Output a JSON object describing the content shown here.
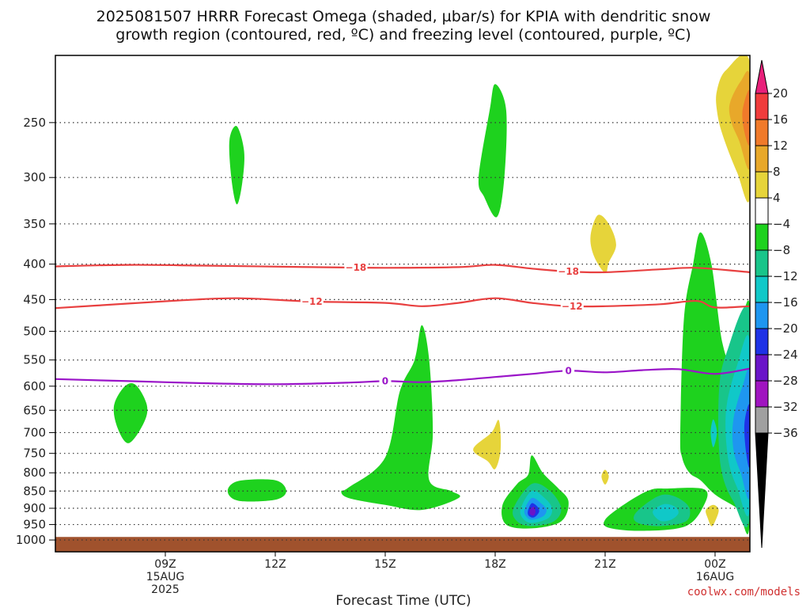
{
  "title_line1": "2025081507 HRRR Forecast Omega (shaded, µbar/s) for KPIA with dendritic snow",
  "title_line2": "growth region (contoured, red, ºC) and freezing level (contoured, purple, ºC)",
  "credit": "coolwx.com/models",
  "chart_data": {
    "type": "heatmap",
    "xlabel": "Forecast Time (UTC)",
    "x_range_hours": [
      6.0,
      24.95
    ],
    "y_axis": {
      "scale": "log",
      "reversed": true,
      "range_hPa": [
        1040,
        200
      ]
    },
    "y_ticks": [
      250,
      300,
      350,
      400,
      450,
      500,
      550,
      600,
      650,
      700,
      750,
      800,
      850,
      900,
      950,
      1000
    ],
    "x_ticks": [
      {
        "hour": 9,
        "lines": [
          "09Z",
          "15AUG",
          "2025"
        ]
      },
      {
        "hour": 12,
        "lines": [
          "12Z"
        ]
      },
      {
        "hour": 15,
        "lines": [
          "15Z"
        ]
      },
      {
        "hour": 18,
        "lines": [
          "18Z"
        ]
      },
      {
        "hour": 21,
        "lines": [
          "21Z"
        ]
      },
      {
        "hour": 24,
        "lines": [
          "00Z",
          "16AUG"
        ]
      }
    ],
    "grid": "dotted horizontal at each pressure tick",
    "colorbar": {
      "levels": [
        "20",
        "16",
        "12",
        "8",
        "4",
        "−4",
        "−8",
        "−12",
        "−16",
        "−20",
        "−24",
        "−28",
        "−32",
        "−36"
      ],
      "colors": [
        "#e8207a",
        "#f03c3c",
        "#f07a2a",
        "#e8a82a",
        "#e6d43a",
        "#ffffff",
        "#1ed21e",
        "#18c58a",
        "#10c8c8",
        "#1e96f0",
        "#1e32e6",
        "#6a14c8",
        "#a014c0",
        "#a0a0a0",
        "#000000"
      ]
    },
    "contours": [
      {
        "label": "−18",
        "color": "#e84040",
        "points": [
          [
            6.0,
            403
          ],
          [
            8.0,
            401
          ],
          [
            10.0,
            402
          ],
          [
            13.0,
            404
          ],
          [
            15.0,
            405
          ],
          [
            17.0,
            404
          ],
          [
            18.0,
            401
          ],
          [
            19.0,
            406
          ],
          [
            20.0,
            410
          ],
          [
            21.0,
            411
          ],
          [
            22.5,
            407
          ],
          [
            23.5,
            405
          ],
          [
            24.95,
            411
          ]
        ],
        "label_hours": [
          14.2,
          20.0
        ]
      },
      {
        "label": "−12",
        "color": "#e84040",
        "points": [
          [
            6.0,
            463
          ],
          [
            8.0,
            456
          ],
          [
            9.5,
            451
          ],
          [
            11.0,
            448
          ],
          [
            13.0,
            453
          ],
          [
            15.0,
            455
          ],
          [
            16.0,
            460
          ],
          [
            17.0,
            455
          ],
          [
            18.0,
            448
          ],
          [
            19.0,
            455
          ],
          [
            20.0,
            460
          ],
          [
            21.0,
            460
          ],
          [
            22.5,
            457
          ],
          [
            23.5,
            452
          ],
          [
            24.0,
            462
          ],
          [
            24.95,
            460
          ]
        ],
        "label_hours": [
          13.0,
          20.1
        ]
      },
      {
        "label": "0",
        "color": "#9a14c8",
        "points": [
          [
            6.0,
            586
          ],
          [
            8.0,
            590
          ],
          [
            10.0,
            594
          ],
          [
            12.0,
            596
          ],
          [
            14.0,
            593
          ],
          [
            15.0,
            590
          ],
          [
            16.0,
            592
          ],
          [
            17.0,
            588
          ],
          [
            18.0,
            582
          ],
          [
            19.0,
            576
          ],
          [
            20.0,
            570
          ],
          [
            21.0,
            573
          ],
          [
            22.0,
            569
          ],
          [
            23.0,
            567
          ],
          [
            24.0,
            576
          ],
          [
            24.95,
            566
          ]
        ],
        "label_hours": [
          15.0,
          20.0
        ]
      }
    ],
    "regions": [
      {
        "color": "#1ed21e",
        "points": [
          [
            7.6,
            640
          ],
          [
            7.9,
            600
          ],
          [
            8.2,
            598
          ],
          [
            8.5,
            640
          ],
          [
            8.4,
            680
          ],
          [
            8.0,
            725
          ],
          [
            7.7,
            690
          ]
        ]
      },
      {
        "color": "#1ed21e",
        "points": [
          [
            10.75,
            265
          ],
          [
            10.95,
            253
          ],
          [
            11.15,
            275
          ],
          [
            11.1,
            305
          ],
          [
            10.95,
            328
          ],
          [
            10.8,
            300
          ]
        ]
      },
      {
        "color": "#1ed21e",
        "points": [
          [
            10.7,
            850
          ],
          [
            11.0,
            822
          ],
          [
            12.0,
            820
          ],
          [
            12.3,
            850
          ],
          [
            12.0,
            875
          ],
          [
            11.0,
            878
          ]
        ]
      },
      {
        "color": "#1ed21e",
        "points": [
          [
            14.0,
            840
          ],
          [
            15.0,
            760
          ],
          [
            15.4,
            610
          ],
          [
            15.8,
            550
          ],
          [
            16.0,
            490
          ],
          [
            16.2,
            550
          ],
          [
            16.3,
            700
          ],
          [
            16.2,
            820
          ],
          [
            16.8,
            850
          ],
          [
            17.0,
            870
          ],
          [
            16.0,
            905
          ],
          [
            15.0,
            890
          ],
          [
            14.0,
            870
          ],
          [
            13.8,
            850
          ]
        ]
      },
      {
        "color": "#1ed21e",
        "points": [
          [
            17.55,
            300
          ],
          [
            17.85,
            240
          ],
          [
            18.0,
            220
          ],
          [
            18.3,
            240
          ],
          [
            18.25,
            300
          ],
          [
            18.05,
            342
          ],
          [
            17.7,
            320
          ]
        ]
      },
      {
        "color": "#1ed21e",
        "points": [
          [
            18.2,
            890
          ],
          [
            18.6,
            830
          ],
          [
            18.9,
            805
          ],
          [
            19.0,
            755
          ],
          [
            19.3,
            800
          ],
          [
            19.7,
            840
          ],
          [
            20.0,
            880
          ],
          [
            19.8,
            940
          ],
          [
            19.0,
            962
          ],
          [
            18.3,
            950
          ]
        ]
      },
      {
        "color": "#18c58a",
        "points": [
          [
            18.5,
            900
          ],
          [
            19.0,
            830
          ],
          [
            19.5,
            850
          ],
          [
            19.8,
            900
          ],
          [
            19.6,
            940
          ],
          [
            19.0,
            955
          ],
          [
            18.6,
            940
          ]
        ]
      },
      {
        "color": "#10c8c8",
        "points": [
          [
            18.7,
            900
          ],
          [
            19.0,
            850
          ],
          [
            19.35,
            870
          ],
          [
            19.55,
            900
          ],
          [
            19.45,
            930
          ],
          [
            19.0,
            945
          ],
          [
            18.75,
            930
          ]
        ]
      },
      {
        "color": "#1e96f0",
        "points": [
          [
            18.8,
            905
          ],
          [
            19.0,
            870
          ],
          [
            19.25,
            885
          ],
          [
            19.4,
            905
          ],
          [
            19.3,
            925
          ],
          [
            19.0,
            935
          ],
          [
            18.85,
            925
          ]
        ]
      },
      {
        "color": "#1e32e6",
        "points": [
          [
            18.9,
            905
          ],
          [
            19.0,
            885
          ],
          [
            19.15,
            895
          ],
          [
            19.2,
            910
          ],
          [
            19.1,
            925
          ],
          [
            19.0,
            928
          ],
          [
            18.9,
            920
          ]
        ]
      },
      {
        "color": "#6a14c8",
        "points": [
          [
            18.95,
            905
          ],
          [
            19.05,
            895
          ],
          [
            19.1,
            910
          ],
          [
            19.05,
            922
          ],
          [
            18.95,
            918
          ]
        ]
      },
      {
        "color": "#1ed21e",
        "points": [
          [
            21.0,
            935
          ],
          [
            21.5,
            890
          ],
          [
            22.2,
            848
          ],
          [
            22.7,
            843
          ],
          [
            23.7,
            845
          ],
          [
            23.7,
            890
          ],
          [
            23.2,
            955
          ],
          [
            22.0,
            970
          ],
          [
            21.1,
            960
          ]
        ]
      },
      {
        "color": "#18c58a",
        "points": [
          [
            21.8,
            920
          ],
          [
            22.2,
            880
          ],
          [
            22.6,
            860
          ],
          [
            23.0,
            870
          ],
          [
            23.3,
            900
          ],
          [
            23.2,
            940
          ],
          [
            22.5,
            955
          ],
          [
            21.9,
            945
          ]
        ]
      },
      {
        "color": "#10c8c8",
        "points": [
          [
            22.3,
            910
          ],
          [
            22.6,
            888
          ],
          [
            22.9,
            895
          ],
          [
            23.0,
            915
          ],
          [
            22.8,
            935
          ],
          [
            22.5,
            938
          ]
        ]
      },
      {
        "color": "#1ed21e",
        "points": [
          [
            23.05,
            700
          ],
          [
            23.15,
            480
          ],
          [
            23.4,
            400
          ],
          [
            23.6,
            360
          ],
          [
            23.9,
            400
          ],
          [
            24.2,
            520
          ],
          [
            24.5,
            550
          ],
          [
            24.95,
            460
          ],
          [
            24.95,
            940
          ],
          [
            24.6,
            900
          ],
          [
            24.0,
            860
          ],
          [
            23.6,
            820
          ],
          [
            23.3,
            800
          ],
          [
            23.1,
            760
          ]
        ]
      },
      {
        "color": "#18c58a",
        "points": [
          [
            24.1,
            620
          ],
          [
            24.3,
            540
          ],
          [
            24.95,
            470
          ],
          [
            24.95,
            920
          ],
          [
            24.5,
            880
          ],
          [
            24.15,
            780
          ]
        ]
      },
      {
        "color": "#10c8c8",
        "points": [
          [
            24.3,
            650
          ],
          [
            24.6,
            560
          ],
          [
            24.95,
            520
          ],
          [
            24.95,
            900
          ],
          [
            24.6,
            840
          ],
          [
            24.35,
            760
          ]
        ]
      },
      {
        "color": "#1e96f0",
        "points": [
          [
            24.5,
            670
          ],
          [
            24.75,
            600
          ],
          [
            24.95,
            580
          ],
          [
            24.95,
            860
          ],
          [
            24.7,
            800
          ],
          [
            24.5,
            740
          ]
        ]
      },
      {
        "color": "#1e32e6",
        "points": [
          [
            24.8,
            680
          ],
          [
            24.95,
            640
          ],
          [
            24.95,
            780
          ],
          [
            24.85,
            750
          ]
        ]
      },
      {
        "color": "#10c8c8",
        "points": [
          [
            23.88,
            700
          ],
          [
            23.95,
            670
          ],
          [
            24.05,
            700
          ],
          [
            23.95,
            735
          ]
        ]
      },
      {
        "color": "#e6d43a",
        "points": [
          [
            24.05,
            225
          ],
          [
            24.3,
            210
          ],
          [
            24.95,
            205
          ],
          [
            24.95,
            320
          ],
          [
            24.6,
            295
          ],
          [
            24.2,
            260
          ],
          [
            24.05,
            240
          ]
        ]
      },
      {
        "color": "#e8a82a",
        "points": [
          [
            24.4,
            235
          ],
          [
            24.7,
            218
          ],
          [
            24.95,
            215
          ],
          [
            24.95,
            290
          ],
          [
            24.65,
            265
          ],
          [
            24.45,
            250
          ]
        ]
      },
      {
        "color": "#f07a2a",
        "points": [
          [
            24.75,
            240
          ],
          [
            24.95,
            225
          ],
          [
            24.95,
            268
          ],
          [
            24.8,
            258
          ]
        ]
      },
      {
        "color": "#e6d43a",
        "points": [
          [
            20.6,
            365
          ],
          [
            20.8,
            340
          ],
          [
            21.1,
            350
          ],
          [
            21.3,
            375
          ],
          [
            21.1,
            398
          ],
          [
            21.0,
            412
          ],
          [
            20.7,
            390
          ]
        ]
      },
      {
        "color": "#e6d43a",
        "points": [
          [
            17.4,
            740
          ],
          [
            17.9,
            700
          ],
          [
            18.1,
            672
          ],
          [
            18.15,
            740
          ],
          [
            18.0,
            790
          ],
          [
            17.8,
            770
          ]
        ]
      },
      {
        "color": "#e6d43a",
        "points": [
          [
            20.9,
            810
          ],
          [
            21.0,
            792
          ],
          [
            21.1,
            810
          ],
          [
            21.0,
            832
          ]
        ]
      },
      {
        "color": "#e6d43a",
        "points": [
          [
            23.75,
            905
          ],
          [
            23.95,
            890
          ],
          [
            24.1,
            905
          ],
          [
            24.0,
            940
          ],
          [
            23.9,
            955
          ],
          [
            23.8,
            930
          ]
        ]
      }
    ],
    "surface_color": "#a0522d",
    "surface_top_hPa": 990
  }
}
